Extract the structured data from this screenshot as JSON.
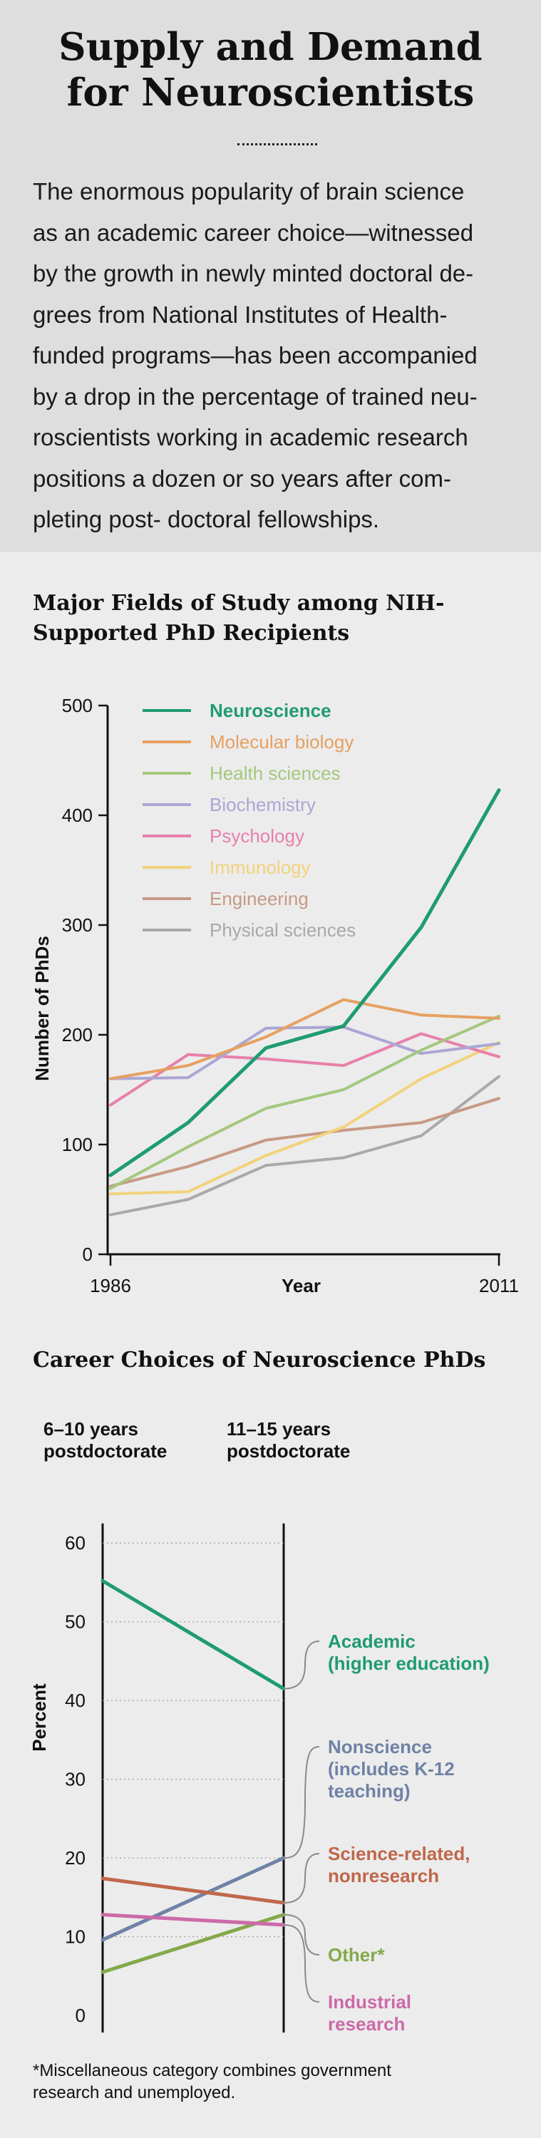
{
  "header": {
    "title_line1": "Supply and Demand",
    "title_line2": "for Neuroscientists",
    "intro_lines": [
      "The enormous popularity of brain science",
      "as an academic career choice—witnessed",
      "by the growth in newly minted doctoral de-",
      "grees from National Institutes of Health-",
      "funded programs—has been accompanied",
      "by a drop in the percentage of trained neu-",
      "roscientists working in academic research",
      "positions a dozen or so years after com-",
      "pleting post- doctoral fellowships."
    ]
  },
  "chart1_title_lines": [
    "Major Fields of Study among NIH-",
    "Supported PhD Recipients"
  ],
  "chart2_title": "Career Choices of Neuroscience PhDs",
  "footnote_lines": [
    "*Miscellaneous category combines government",
    "research and unemployed."
  ],
  "chart_data": [
    {
      "type": "line",
      "title": "Major Fields of Study among NIH-Supported PhD Recipients",
      "xlabel": "Year",
      "ylabel": "Number of PhDs",
      "x_tick_labels": [
        "1986",
        "2011"
      ],
      "xlim": [
        1986,
        2011
      ],
      "ylim": [
        0,
        500
      ],
      "y_ticks": [
        0,
        100,
        200,
        300,
        400,
        500
      ],
      "legend_position": "top-left",
      "x": [
        1986,
        1991,
        1996,
        2001,
        2006,
        2011
      ],
      "series": [
        {
          "name": "Neuroscience",
          "color": "#1f9b73",
          "values": [
            72,
            120,
            188,
            208,
            298,
            423
          ],
          "emphasis": true
        },
        {
          "name": "Molecular biology",
          "color": "#e6a062",
          "values": [
            160,
            172,
            198,
            232,
            218,
            215
          ]
        },
        {
          "name": "Health sciences",
          "color": "#a3c87d",
          "values": [
            60,
            98,
            133,
            150,
            186,
            217
          ]
        },
        {
          "name": "Biochemistry",
          "color": "#aba6d4",
          "values": [
            160,
            161,
            206,
            207,
            183,
            192
          ]
        },
        {
          "name": "Psychology",
          "color": "#e880aa",
          "values": [
            136,
            182,
            178,
            172,
            201,
            180
          ]
        },
        {
          "name": "Immunology",
          "color": "#f2d27b",
          "values": [
            55,
            57,
            90,
            116,
            160,
            193
          ]
        },
        {
          "name": "Engineering",
          "color": "#c79a85",
          "values": [
            62,
            80,
            104,
            113,
            120,
            142
          ]
        },
        {
          "name": "Physical sciences",
          "color": "#a9a9a9",
          "values": [
            36,
            50,
            81,
            88,
            108,
            162
          ]
        }
      ]
    },
    {
      "type": "line",
      "title": "Career Choices of Neuroscience PhDs",
      "ylabel": "Percent",
      "ylim": [
        0,
        65
      ],
      "y_ticks": [
        0,
        10,
        20,
        30,
        40,
        50,
        60
      ],
      "categories": [
        "6–10 years postdoctorate",
        "11–15 years postdoctorate"
      ],
      "category_label_lines": [
        [
          "6–10 years",
          "postdoctorate"
        ],
        [
          "11–15 years",
          "postdoctorate"
        ]
      ],
      "series": [
        {
          "name": "Academic (higher education)",
          "label_lines": [
            "Academic",
            "(higher education)"
          ],
          "color": "#1f9b73",
          "values": [
            55.2,
            41.5
          ]
        },
        {
          "name": "Nonscience (includes K-12 teaching)",
          "label_lines": [
            "Nonscience",
            "(includes K-12",
            "teaching)"
          ],
          "color": "#6f82a6",
          "values": [
            9.6,
            20.0
          ]
        },
        {
          "name": "Science-related, nonresearch",
          "label_lines": [
            "Science-related,",
            "nonresearch"
          ],
          "color": "#c0674a",
          "values": [
            17.4,
            14.3
          ]
        },
        {
          "name": "Other*",
          "label_lines": [
            "Other*"
          ],
          "color": "#84a94a",
          "values": [
            5.5,
            12.8
          ]
        },
        {
          "name": "Industrial research",
          "label_lines": [
            "Industrial",
            "research"
          ],
          "color": "#cc6aa8",
          "values": [
            12.8,
            11.5
          ]
        }
      ]
    }
  ]
}
